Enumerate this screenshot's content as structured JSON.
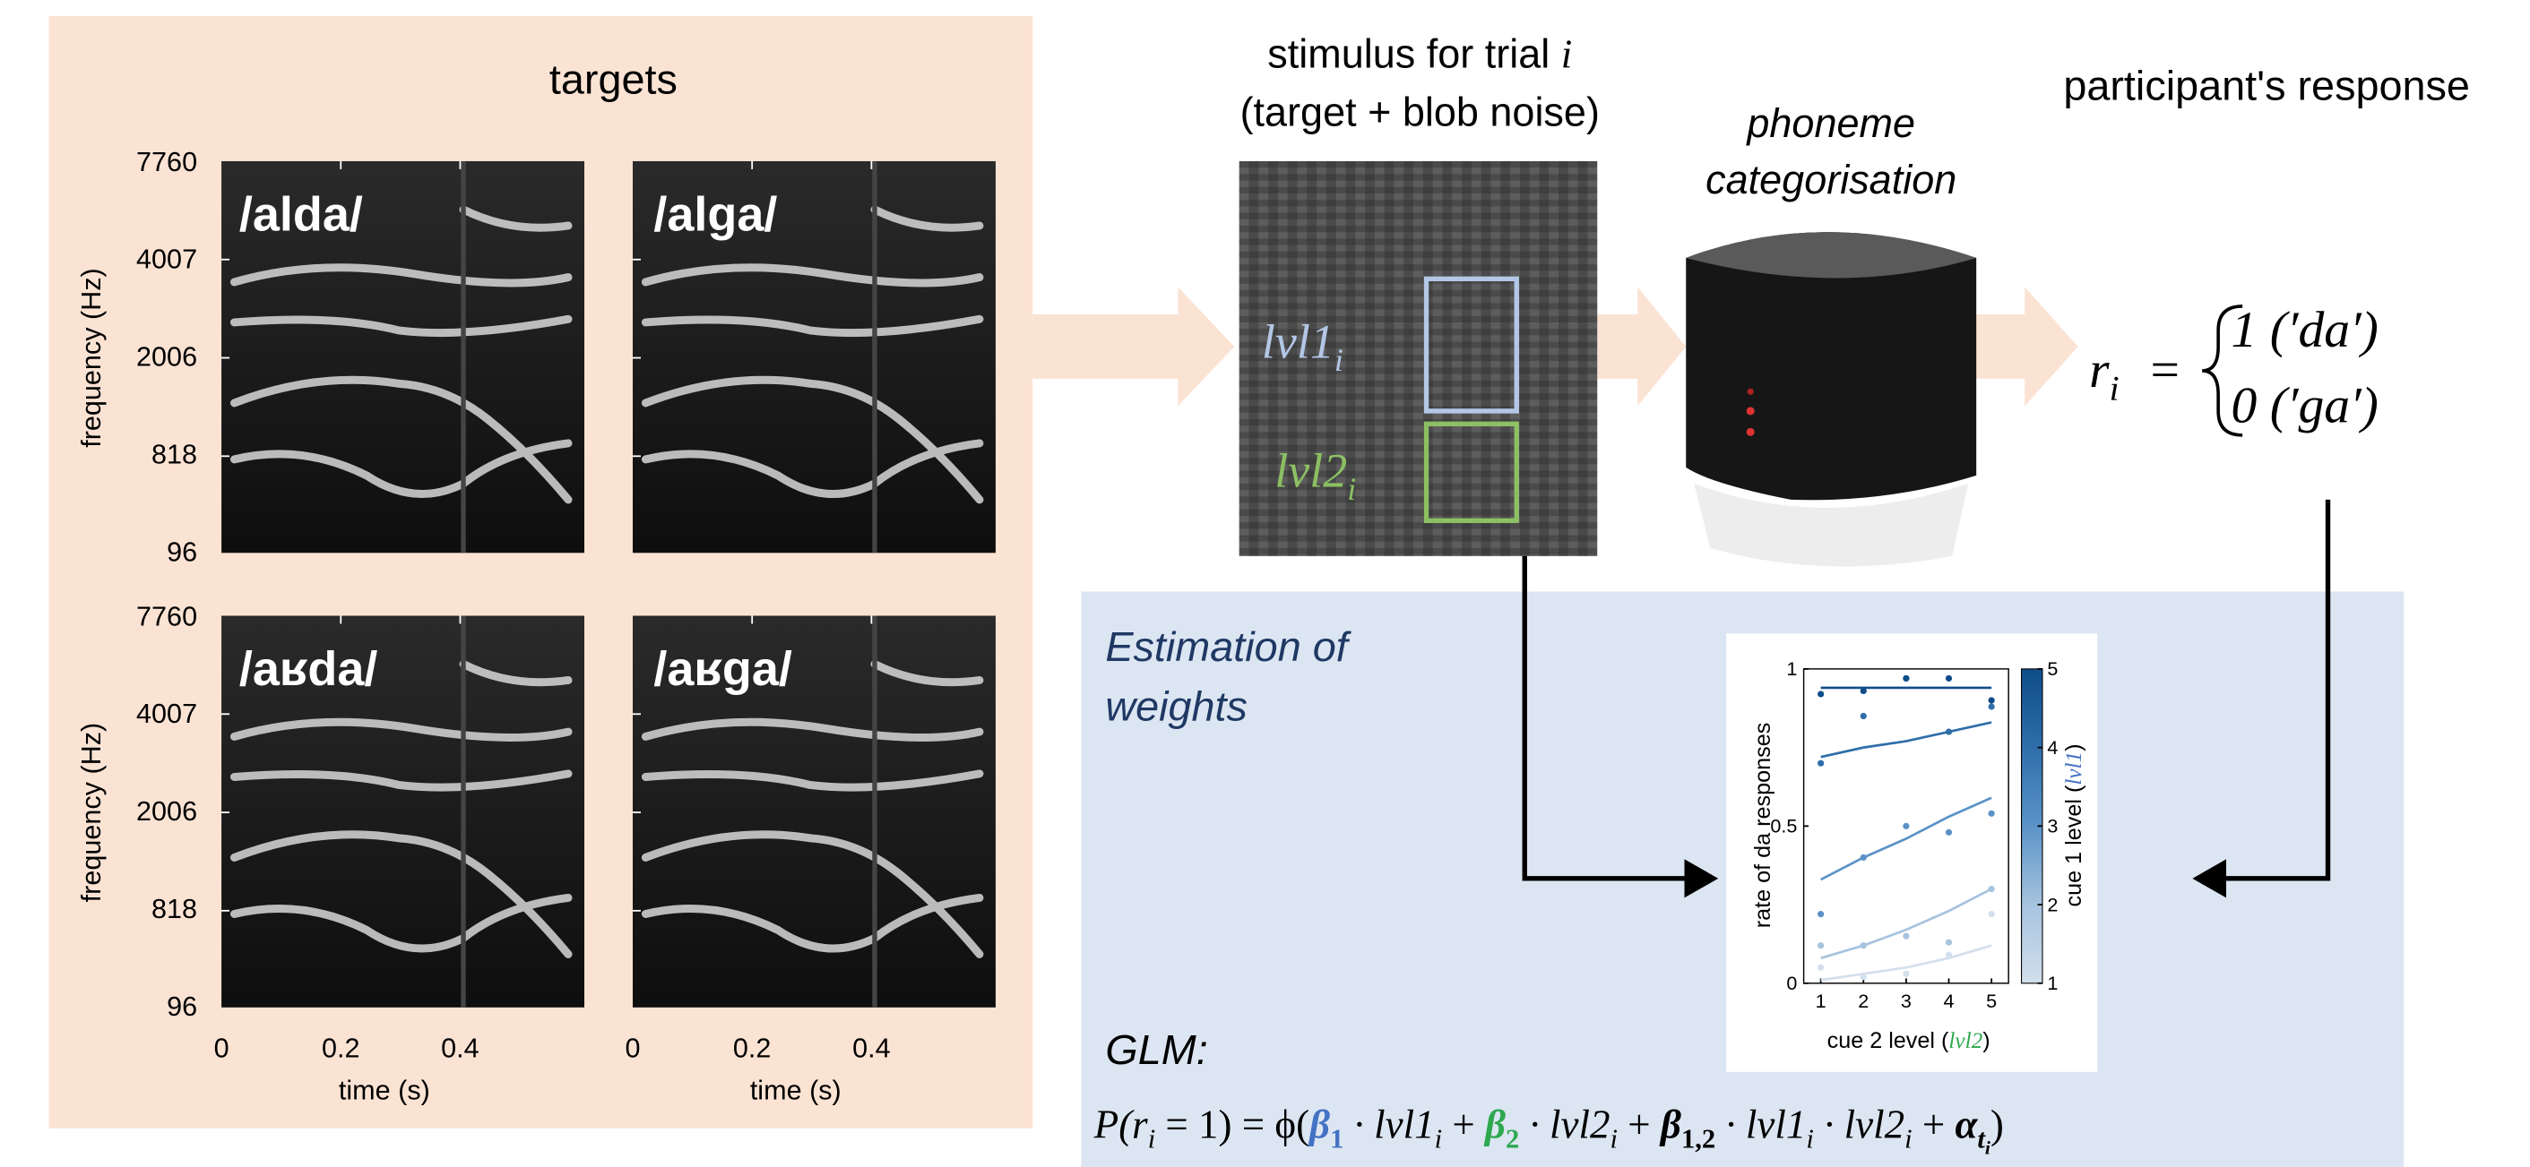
{
  "targets": {
    "title": "targets",
    "panels": [
      "/alda/",
      "/alga/",
      "/aʁda/",
      "/aʁga/"
    ],
    "yticks": [
      7760,
      4007,
      2006,
      818,
      96
    ],
    "xticks": [
      0,
      0.2,
      0.4
    ],
    "ylabel": "frequency (Hz)",
    "xlabel": "time (s)"
  },
  "stimulus": {
    "title": [
      "stimulus for trial",
      "i"
    ],
    "subtitle": "(target + blob noise)",
    "lvl1": [
      "lvl1",
      "i"
    ],
    "lvl2": [
      "lvl2",
      "i"
    ]
  },
  "categorisation": [
    "phoneme",
    "categorisation"
  ],
  "response": {
    "title": "participant's response",
    "parts": [
      "r",
      "i",
      "=",
      "1 (′da′)",
      "0 (′ga′)"
    ]
  },
  "estimation": [
    "Estimation of",
    "weights"
  ],
  "inset": {
    "type": "scatter",
    "ylabel": "rate of da responses",
    "xlabel": [
      "cue 2 level (",
      "lvl2",
      ")"
    ],
    "clabel": [
      "cue 1 level (",
      "lvl1",
      ")"
    ],
    "x": [
      1,
      2,
      3,
      4,
      5
    ],
    "xlim": [
      0.6,
      5.4
    ],
    "xticks": [
      1,
      2,
      3,
      4,
      5
    ],
    "ylim": [
      0,
      1
    ],
    "yticks": [
      0,
      0.5,
      1
    ],
    "clim": [
      1,
      5
    ],
    "cticks": [
      1,
      2,
      3,
      4,
      5
    ],
    "series": [
      {
        "color": "#d3dfec",
        "values": [
          0.05,
          0.02,
          0.03,
          0.09,
          0.22
        ],
        "fit": [
          0.01,
          0.03,
          0.05,
          0.08,
          0.12
        ]
      },
      {
        "color": "#a6c3df",
        "values": [
          0.12,
          0.12,
          0.15,
          0.13,
          0.3
        ],
        "fit": [
          0.08,
          0.12,
          0.17,
          0.23,
          0.3
        ]
      },
      {
        "color": "#5b93c8",
        "values": [
          0.22,
          0.4,
          0.5,
          0.48,
          0.54
        ],
        "fit": [
          0.33,
          0.4,
          0.46,
          0.53,
          0.59
        ]
      },
      {
        "color": "#2f6eaa",
        "values": [
          0.7,
          0.85,
          0.97,
          0.8,
          0.88
        ],
        "fit": [
          0.72,
          0.75,
          0.77,
          0.8,
          0.83
        ]
      },
      {
        "color": "#0f4c8a",
        "values": [
          0.92,
          0.93,
          0.97,
          0.97,
          0.9
        ],
        "fit": [
          0.94,
          0.94,
          0.94,
          0.94,
          0.94
        ]
      }
    ]
  },
  "glm": {
    "label": "GLM:",
    "formula": [
      "P(r",
      "i",
      " = 1) = ϕ(",
      "β",
      "1",
      " · lvl1",
      "i",
      " + ",
      "β",
      "2",
      " · lvl2",
      "i",
      " + ",
      "β",
      "1,2",
      " · lvl1",
      "i",
      " · lvl2",
      "i",
      " + ",
      "α",
      "t",
      "i",
      ")"
    ]
  }
}
